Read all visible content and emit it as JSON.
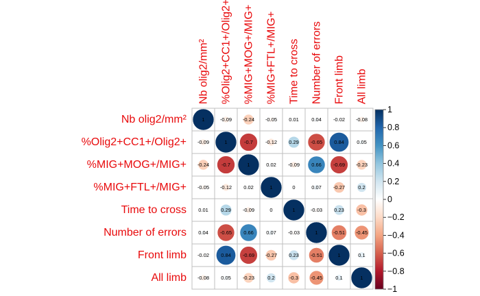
{
  "chart_data": {
    "type": "heatmap",
    "variables": [
      "Nb olig2/mm²",
      "%Olig2+CC1+/Olig2+",
      "%MIG+MOG+/MIG+",
      "%MIG+FTL+/MIG+",
      "Time to cross",
      "Number of errors",
      "Front limb",
      "All limb"
    ],
    "matrix": [
      [
        1,
        -0.09,
        -0.24,
        -0.05,
        0.01,
        0.04,
        -0.02,
        -0.08
      ],
      [
        -0.09,
        1,
        -0.7,
        -0.12,
        0.29,
        -0.65,
        0.84,
        0.05
      ],
      [
        -0.24,
        -0.7,
        1,
        0.02,
        -0.09,
        0.66,
        -0.69,
        -0.23
      ],
      [
        -0.05,
        -0.12,
        0.02,
        1,
        0,
        0.07,
        -0.27,
        0.2
      ],
      [
        0.01,
        0.29,
        -0.09,
        0,
        1,
        -0.03,
        0.23,
        -0.3
      ],
      [
        0.04,
        -0.65,
        0.66,
        0.07,
        -0.03,
        1,
        -0.51,
        -0.45
      ],
      [
        -0.02,
        0.84,
        -0.69,
        -0.27,
        0.23,
        -0.51,
        1,
        0.1
      ],
      [
        -0.08,
        0.05,
        -0.23,
        0.2,
        -0.3,
        -0.45,
        0.1,
        1
      ]
    ],
    "labels": [
      [
        "1",
        "-0.09",
        "-0.24",
        "-0.05",
        "0.01",
        "0.04",
        "-0.02",
        "-0.08"
      ],
      [
        "-0.09",
        "1",
        "-0.7",
        "-0.12",
        "0.29",
        "-0.65",
        "0.84",
        "0.05"
      ],
      [
        "-0.24",
        "-0.7",
        "1",
        "0.02",
        "-0.09",
        "0.66",
        "-0.69",
        "-0.23"
      ],
      [
        "-0.05",
        "-0.12",
        "0.02",
        "1",
        "0",
        "0.07",
        "-0.27",
        "0.2"
      ],
      [
        "0.01",
        "0.29",
        "-0.09",
        "0",
        "1",
        "-0.03",
        "0.23",
        "-0.3"
      ],
      [
        "0.04",
        "-0.65",
        "0.66",
        "0.07",
        "-0.03",
        "1",
        "-0.51",
        "-0.45"
      ],
      [
        "-0.02",
        "0.84",
        "-0.69",
        "-0.27",
        "0.23",
        "-0.51",
        "1",
        "0.1"
      ],
      [
        "-0.08",
        "0.05",
        "-0.23",
        "0.2",
        "-0.3",
        "-0.45",
        "0.1",
        "1"
      ]
    ],
    "colorbar": {
      "range": [
        -1,
        1
      ],
      "ticks": [
        1,
        0.8,
        0.6,
        0.4,
        0.2,
        0,
        -0.2,
        -0.4,
        -0.6,
        -0.8,
        -1
      ],
      "tick_labels": [
        "1",
        "0.8",
        "0.6",
        "0.4",
        "0.2",
        "0",
        "−0.2",
        "−0.4",
        "−0.6",
        "−0.8",
        "−1"
      ],
      "colors": [
        "#67001F",
        "#B2182B",
        "#D6604D",
        "#F4A582",
        "#FDDBC7",
        "#FFFFFF",
        "#D1E5F0",
        "#92C5DE",
        "#4393C3",
        "#2166AC",
        "#053061"
      ]
    },
    "label_color": "#e8090b",
    "marker": "circle"
  }
}
